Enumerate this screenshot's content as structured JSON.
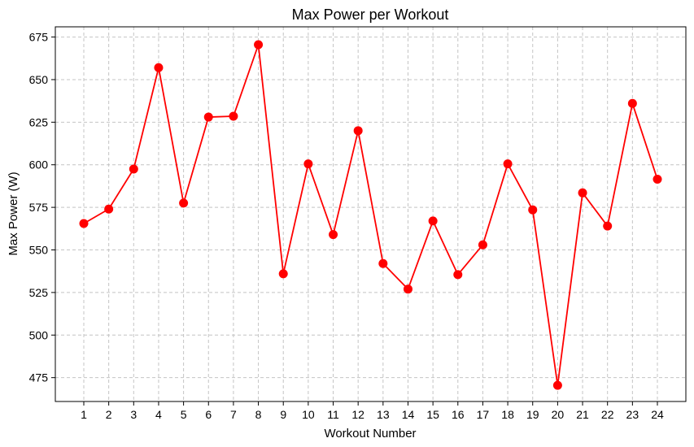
{
  "chart_data": {
    "type": "line",
    "title": "Max Power per Workout",
    "xlabel": "Workout Number",
    "ylabel": "Max Power (W)",
    "categories": [
      "1",
      "2",
      "3",
      "4",
      "5",
      "6",
      "7",
      "8",
      "9",
      "10",
      "11",
      "12",
      "13",
      "14",
      "15",
      "16",
      "17",
      "18",
      "19",
      "20",
      "21",
      "22",
      "23",
      "24"
    ],
    "series": [
      {
        "values": [
          565.5,
          574,
          597.5,
          657,
          577.5,
          628,
          628.5,
          670.5,
          536,
          600.5,
          559,
          620,
          542,
          527,
          567,
          535.5,
          553,
          600.5,
          573.5,
          470.5,
          583.5,
          564,
          636,
          591.5
        ],
        "color": "#ff0000",
        "marker": "circle"
      }
    ],
    "ylim": [
      461,
      681
    ],
    "yticks": [
      475,
      500,
      525,
      550,
      575,
      600,
      625,
      650,
      675
    ],
    "grid": true,
    "grid_style": "dashed"
  }
}
